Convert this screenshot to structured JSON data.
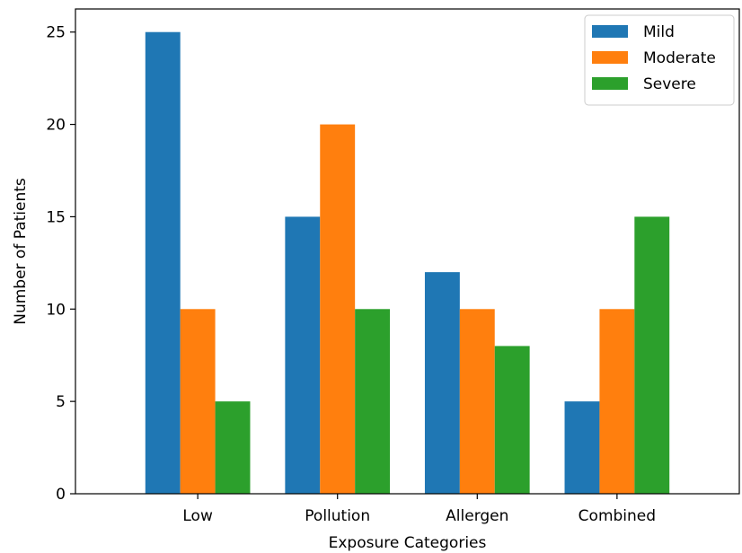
{
  "chart_data": {
    "type": "bar",
    "title": "",
    "xlabel": "Exposure Categories",
    "ylabel": "Number of Patients",
    "categories": [
      "Low",
      "Pollution",
      "Allergen",
      "Combined"
    ],
    "series": [
      {
        "name": "Mild",
        "color": "#1f77b4",
        "values": [
          25,
          15,
          12,
          5
        ]
      },
      {
        "name": "Moderate",
        "color": "#ff7f0e",
        "values": [
          10,
          20,
          10,
          10
        ]
      },
      {
        "name": "Severe",
        "color": "#2ca02c",
        "values": [
          5,
          10,
          8,
          15
        ]
      }
    ],
    "ylim": [
      0,
      26.25
    ],
    "yticks": [
      0,
      5,
      10,
      15,
      20,
      25
    ],
    "grid": false,
    "legend_position": "top-right"
  }
}
